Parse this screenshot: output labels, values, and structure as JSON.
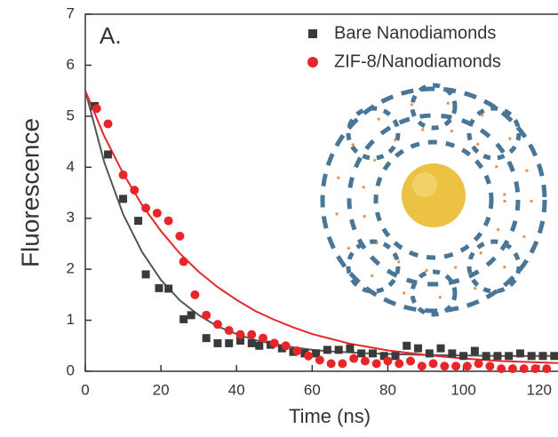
{
  "chart_data": {
    "type": "scatter",
    "annotation": "A.",
    "xlabel": "Time (ns)",
    "ylabel": "Fluorescence",
    "xlim": [
      0,
      125
    ],
    "ylim": [
      0,
      7
    ],
    "xticks": [
      0,
      20,
      40,
      60,
      80,
      100,
      120
    ],
    "yticks": [
      0,
      1,
      2,
      3,
      4,
      5,
      6,
      7
    ],
    "legend": "upper right",
    "series": [
      {
        "name": "Bare Nanodiamonds",
        "color": "#3a3a3a",
        "marker": "square",
        "x": [
          2.5,
          6,
          10,
          14,
          16,
          19.5,
          22,
          26,
          28,
          32,
          35,
          38,
          41,
          44,
          46,
          49,
          52,
          55,
          58,
          61,
          64,
          67,
          70,
          73,
          76,
          79,
          82,
          85,
          88,
          91,
          94,
          97,
          100,
          103,
          106,
          109,
          112,
          115,
          118,
          121,
          124
        ],
        "values": [
          5.2,
          4.25,
          3.38,
          2.95,
          1.9,
          1.63,
          1.62,
          1.02,
          1.1,
          0.65,
          0.55,
          0.55,
          0.6,
          0.55,
          0.5,
          0.52,
          0.45,
          0.38,
          0.35,
          0.35,
          0.42,
          0.42,
          0.45,
          0.35,
          0.35,
          0.3,
          0.3,
          0.5,
          0.45,
          0.35,
          0.45,
          0.35,
          0.3,
          0.4,
          0.3,
          0.3,
          0.3,
          0.35,
          0.3,
          0.3,
          0.3
        ]
      },
      {
        "name": "ZIF-8/Nanodiamonds",
        "color": "#e8262a",
        "marker": "circle",
        "x": [
          3,
          6,
          10,
          13,
          16,
          19,
          22,
          25,
          26,
          29,
          32,
          35,
          38,
          41,
          44,
          47,
          50,
          53,
          56,
          59,
          62,
          65,
          68,
          71,
          74,
          77,
          80,
          83,
          86,
          89,
          92,
          95,
          98,
          101,
          104,
          107,
          110,
          113,
          116,
          119,
          122
        ],
        "values": [
          5.15,
          4.85,
          3.85,
          3.55,
          3.2,
          3.1,
          2.95,
          2.65,
          2.15,
          1.5,
          1.1,
          0.92,
          0.8,
          0.72,
          0.72,
          0.65,
          0.55,
          0.5,
          0.4,
          0.3,
          0.22,
          0.15,
          0.15,
          0.25,
          0.2,
          0.15,
          0.2,
          0.15,
          0.2,
          0.1,
          0.15,
          0.1,
          0.1,
          0.1,
          0.15,
          0.1,
          0.05,
          0.05,
          0.05,
          0.05,
          0.05
        ]
      },
      {
        "type": "line",
        "color": "#555555",
        "x": [
          0,
          5,
          10,
          15,
          20,
          25,
          30,
          35,
          40,
          45,
          50,
          55,
          60,
          65,
          70,
          75,
          80,
          90,
          100,
          110,
          125
        ],
        "values": [
          5.5,
          4.1,
          3.08,
          2.34,
          1.79,
          1.39,
          1.1,
          0.88,
          0.73,
          0.61,
          0.53,
          0.47,
          0.42,
          0.39,
          0.37,
          0.35,
          0.34,
          0.32,
          0.31,
          0.3,
          0.3
        ]
      },
      {
        "type": "line",
        "color": "#e8262a",
        "x": [
          0,
          5,
          10,
          15,
          20,
          25,
          30,
          35,
          40,
          45,
          50,
          55,
          60,
          70,
          80,
          90,
          100,
          110,
          125
        ],
        "values": [
          5.5,
          4.61,
          3.88,
          3.26,
          2.75,
          2.31,
          1.95,
          1.65,
          1.4,
          1.18,
          1.01,
          0.86,
          0.73,
          0.54,
          0.41,
          0.32,
          0.25,
          0.2,
          0.16
        ]
      }
    ]
  }
}
